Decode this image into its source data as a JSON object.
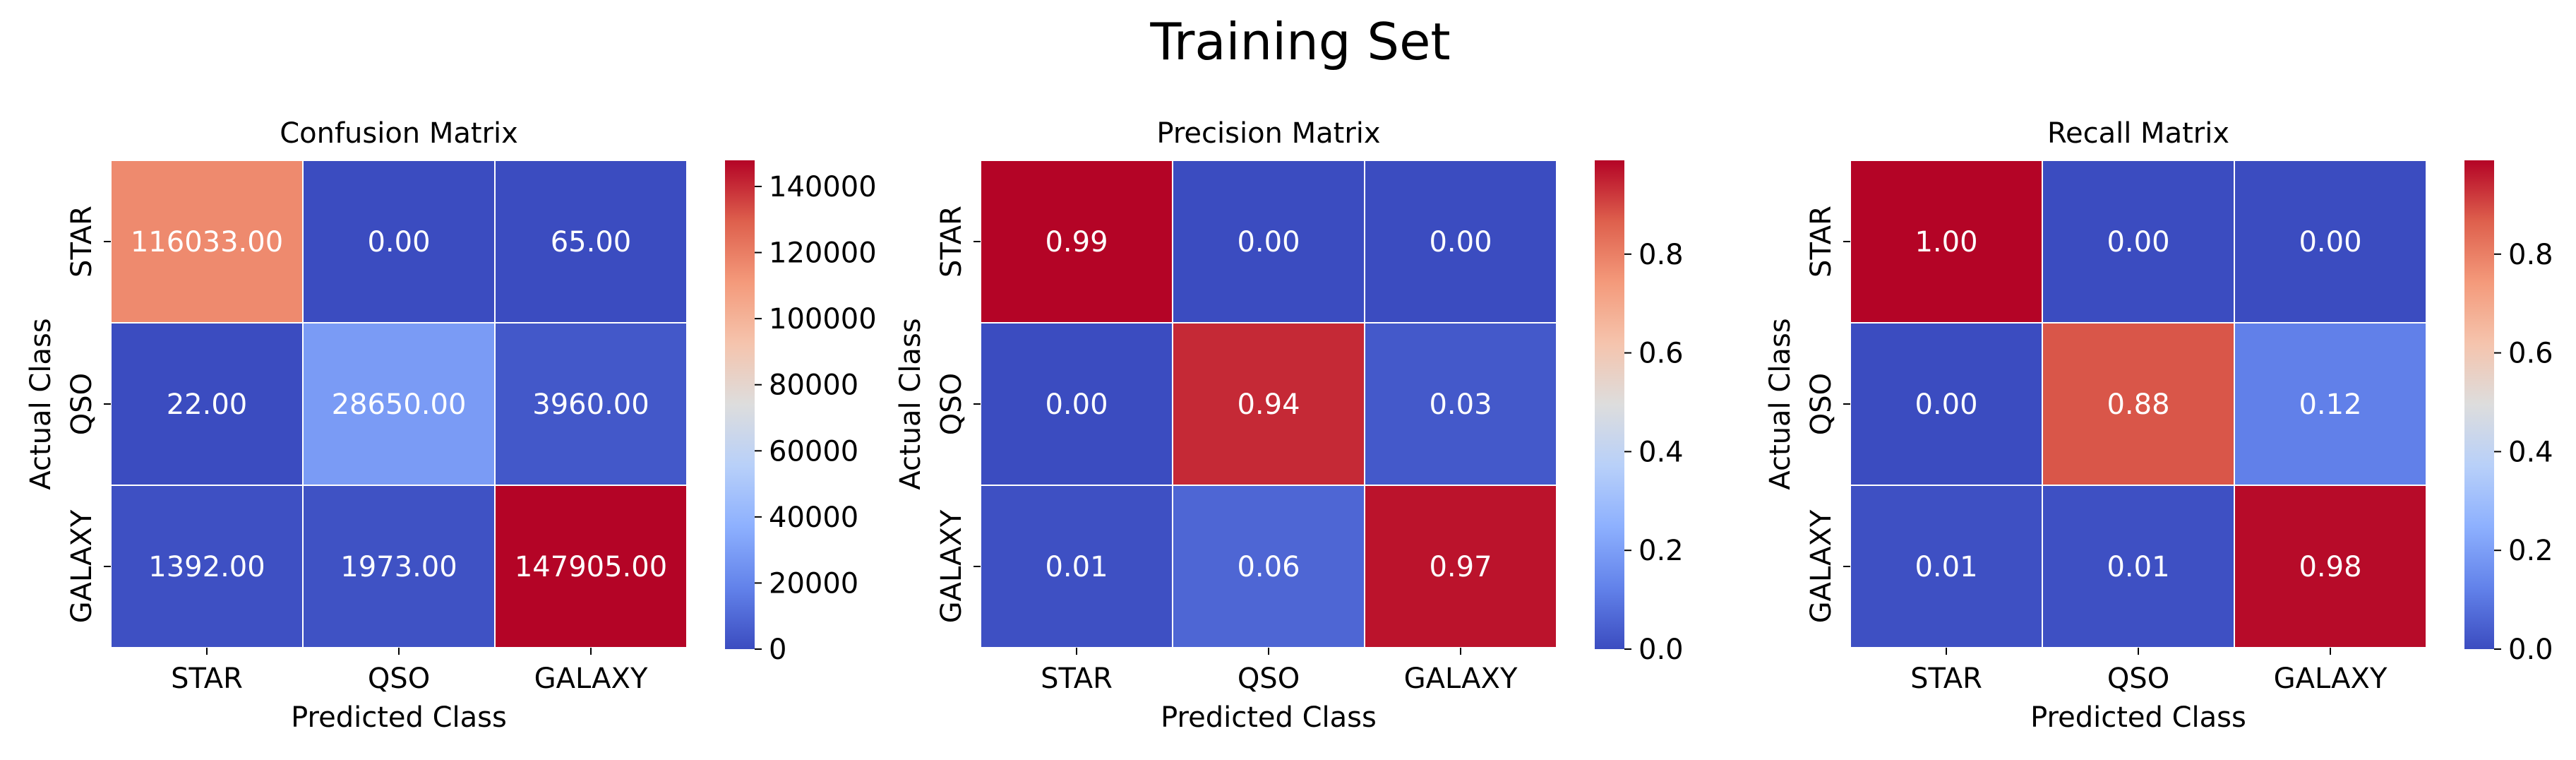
{
  "figure": {
    "title": "Training Set"
  },
  "chart_data": [
    {
      "type": "heatmap",
      "title": "Confusion Matrix",
      "xlabel": "Predicted Class",
      "ylabel": "Actual Class",
      "x_categories": [
        "STAR",
        "QSO",
        "GALAXY"
      ],
      "y_categories": [
        "STAR",
        "QSO",
        "GALAXY"
      ],
      "values": [
        [
          116033.0,
          0.0,
          65.0
        ],
        [
          22.0,
          28650.0,
          3960.0
        ],
        [
          1392.0,
          1973.0,
          147905.0
        ]
      ],
      "cell_labels": [
        [
          "116033.00",
          "0.00",
          "65.00"
        ],
        [
          "22.00",
          "28650.00",
          "3960.00"
        ],
        [
          "1392.00",
          "1973.00",
          "147905.00"
        ]
      ],
      "colormap": "coolwarm",
      "vmin": 0,
      "vmax": 147905,
      "colorbar_ticks": [
        0,
        20000,
        40000,
        60000,
        80000,
        100000,
        120000,
        140000
      ],
      "colorbar_tick_labels": [
        "0",
        "20000",
        "40000",
        "60000",
        "80000",
        "100000",
        "120000",
        "140000"
      ]
    },
    {
      "type": "heatmap",
      "title": "Precision Matrix",
      "xlabel": "Predicted Class",
      "ylabel": "Actual Class",
      "x_categories": [
        "STAR",
        "QSO",
        "GALAXY"
      ],
      "y_categories": [
        "STAR",
        "QSO",
        "GALAXY"
      ],
      "values": [
        [
          0.99,
          0.0,
          0.0
        ],
        [
          0.0,
          0.94,
          0.03
        ],
        [
          0.01,
          0.06,
          0.97
        ]
      ],
      "cell_labels": [
        [
          "0.99",
          "0.00",
          "0.00"
        ],
        [
          "0.00",
          "0.94",
          "0.03"
        ],
        [
          "0.01",
          "0.06",
          "0.97"
        ]
      ],
      "colormap": "coolwarm",
      "vmin": 0,
      "vmax": 0.99,
      "colorbar_ticks": [
        0.0,
        0.2,
        0.4,
        0.6,
        0.8
      ],
      "colorbar_tick_labels": [
        "0.0",
        "0.2",
        "0.4",
        "0.6",
        "0.8"
      ]
    },
    {
      "type": "heatmap",
      "title": "Recall Matrix",
      "xlabel": "Predicted Class",
      "ylabel": "Actual Class",
      "x_categories": [
        "STAR",
        "QSO",
        "GALAXY"
      ],
      "y_categories": [
        "STAR",
        "QSO",
        "GALAXY"
      ],
      "values": [
        [
          1.0,
          0.0,
          0.0
        ],
        [
          0.0,
          0.88,
          0.12
        ],
        [
          0.01,
          0.01,
          0.98
        ]
      ],
      "cell_labels": [
        [
          "1.00",
          "0.00",
          "0.00"
        ],
        [
          "0.00",
          "0.88",
          "0.12"
        ],
        [
          "0.01",
          "0.01",
          "0.98"
        ]
      ],
      "colormap": "coolwarm",
      "vmin": 0,
      "vmax": 0.99,
      "colorbar_ticks": [
        0.0,
        0.2,
        0.4,
        0.6,
        0.8
      ],
      "colorbar_tick_labels": [
        "0.0",
        "0.2",
        "0.4",
        "0.6",
        "0.8"
      ]
    }
  ]
}
